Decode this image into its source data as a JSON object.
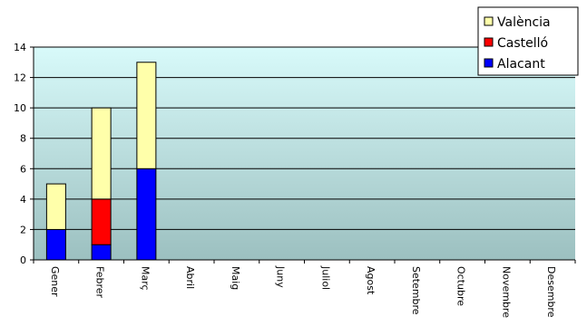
{
  "chart_data": {
    "type": "bar",
    "stacked": true,
    "title": "",
    "xlabel": "",
    "ylabel": "",
    "categories": [
      "Gener",
      "Febrer",
      "Març",
      "Abril",
      "Maig",
      "Juny",
      "Juliol",
      "Agost",
      "Setembre",
      "Octubre",
      "Novembre",
      "Desembre"
    ],
    "series": [
      {
        "name": "Alacant",
        "color": "#0000ff",
        "values": [
          2,
          1,
          6,
          0,
          0,
          0,
          0,
          0,
          0,
          0,
          0,
          0
        ]
      },
      {
        "name": "Castelló",
        "color": "#ff0000",
        "values": [
          0,
          3,
          0,
          0,
          0,
          0,
          0,
          0,
          0,
          0,
          0,
          0
        ]
      },
      {
        "name": "València",
        "color": "#ffffaa",
        "values": [
          3,
          6,
          7,
          0,
          0,
          0,
          0,
          0,
          0,
          0,
          0,
          0
        ]
      }
    ],
    "legend_order": [
      "València",
      "Castelló",
      "Alacant"
    ],
    "ylim": [
      0,
      14
    ],
    "yticks": [
      0,
      2,
      4,
      6,
      8,
      10,
      12,
      14
    ],
    "grid": true,
    "legend_position": "top-right",
    "plot_background": {
      "top": "#d8fafa",
      "bottom": "#9cc0c0"
    }
  }
}
